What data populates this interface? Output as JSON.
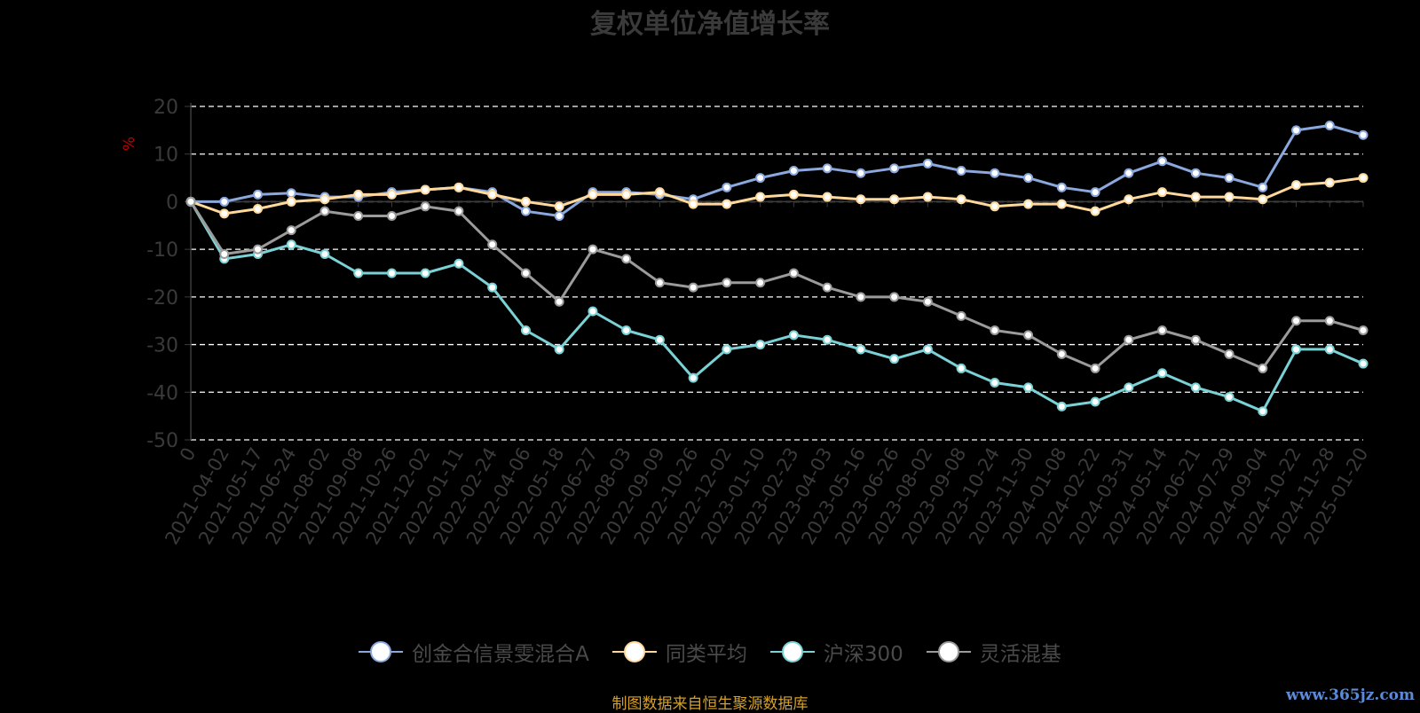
{
  "title": "复权单位净值增长率",
  "source_note": "制图数据来自恒生聚源数据库",
  "watermark": "www.365jz.com",
  "colors": {
    "fund": "#8aa8dd",
    "peer": "#ffd89b",
    "hs300": "#7ad2d6",
    "flex": "#9b9b9b",
    "grid": "#ffffff",
    "axis": "#3c3c3c",
    "tick_text": "#3a3a3a",
    "unit": "#c00000"
  },
  "chart_data": {
    "type": "line",
    "title": "复权单位净值增长率",
    "ylabel": "%",
    "ylim": [
      -50,
      20
    ],
    "yticks": [
      20,
      10,
      0,
      -10,
      -20,
      -30,
      -40,
      -50
    ],
    "grid": true,
    "legend_position": "bottom",
    "x_tick_labels": [
      "0",
      "2021-04-02",
      "2021-05-17",
      "2021-06-24",
      "2021-08-02",
      "2021-09-08",
      "2021-10-26",
      "2021-12-02",
      "2022-01-11",
      "2022-02-24",
      "2022-04-06",
      "2022-05-18",
      "2022-06-27",
      "2022-08-03",
      "2022-09-09",
      "2022-10-26",
      "2022-12-02",
      "2023-01-10",
      "2023-02-23",
      "2023-04-03",
      "2023-05-16",
      "2023-06-26",
      "2023-08-02",
      "2023-09-08",
      "2023-10-24",
      "2023-11-30",
      "2024-01-08",
      "2024-02-22",
      "2024-03-31",
      "2024-05-14",
      "2024-06-21",
      "2024-07-29",
      "2024-09-04",
      "2024-10-22",
      "2024-11-28",
      "2025-01-20"
    ],
    "x": [
      "0",
      "2021-04-02",
      "2021-05-17",
      "2021-06-24",
      "2021-08-02",
      "2021-09-08",
      "2021-10-26",
      "2021-12-02",
      "2022-01-11",
      "2022-02-24",
      "2022-04-06",
      "2022-05-18",
      "2022-06-27",
      "2022-08-03",
      "2022-09-09",
      "2022-10-26",
      "2022-12-02",
      "2023-01-10",
      "2023-02-23",
      "2023-04-03",
      "2023-05-16",
      "2023-06-26",
      "2023-08-02",
      "2023-09-08",
      "2023-10-24",
      "2023-11-30",
      "2024-01-08",
      "2024-02-22",
      "2024-03-31",
      "2024-05-14",
      "2024-06-21",
      "2024-07-29",
      "2024-09-04",
      "2024-10-22",
      "2024-11-28",
      "2025-01-20"
    ],
    "series": [
      {
        "name": "创金合信景雯混合A",
        "color_key": "fund",
        "values": [
          0,
          0,
          1.5,
          1.8,
          1,
          1,
          2,
          2.5,
          3,
          2,
          -2,
          -3,
          2,
          2,
          1.5,
          0.5,
          3,
          5,
          6.5,
          7,
          6,
          7,
          8,
          6.5,
          6,
          5,
          3,
          2,
          6,
          8.5,
          6,
          5,
          3,
          15,
          16,
          14
        ]
      },
      {
        "name": "同类平均",
        "color_key": "peer",
        "values": [
          0,
          -2.5,
          -1.5,
          0,
          0.5,
          1.5,
          1.5,
          2.5,
          3,
          1.5,
          0,
          -1,
          1.5,
          1.5,
          2,
          -0.5,
          -0.5,
          1,
          1.5,
          1,
          0.5,
          0.5,
          1,
          0.5,
          -1,
          -0.5,
          -0.5,
          -2,
          0.5,
          2,
          1,
          1,
          0.5,
          3.5,
          4,
          5
        ]
      },
      {
        "name": "沪深300",
        "color_key": "hs300",
        "values": [
          0,
          -12,
          -11,
          -9,
          -11,
          -15,
          -15,
          -15,
          -13,
          -18,
          -27,
          -31,
          -23,
          -27,
          -29,
          -37,
          -31,
          -30,
          -28,
          -29,
          -31,
          -33,
          -31,
          -35,
          -38,
          -39,
          -43,
          -42,
          -39,
          -36,
          -39,
          -41,
          -44,
          -31,
          -31,
          -34
        ]
      },
      {
        "name": "灵活混基",
        "color_key": "flex",
        "values": [
          0,
          -11,
          -10,
          -6,
          -2,
          -3,
          -3,
          -1,
          -2,
          -9,
          -15,
          -21,
          -10,
          -12,
          -17,
          -18,
          -17,
          -17,
          -15,
          -18,
          -20,
          -20,
          -21,
          -24,
          -27,
          -28,
          -32,
          -35,
          -29,
          -27,
          -29,
          -32,
          -35,
          -25,
          -25,
          -27
        ]
      }
    ]
  }
}
